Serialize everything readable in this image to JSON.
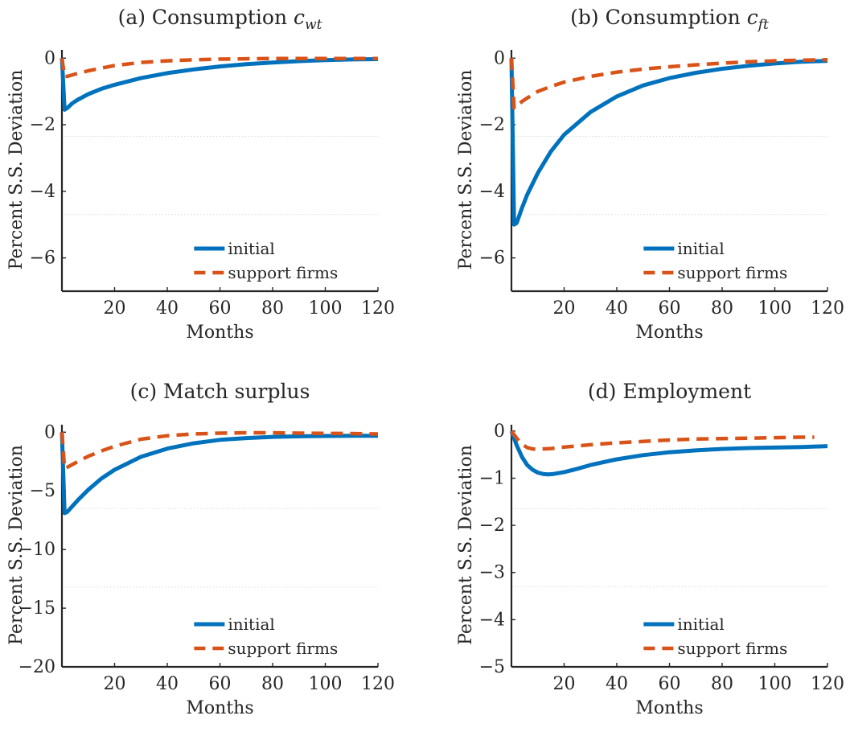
{
  "colors": {
    "initial": "#0072BD",
    "support": "#D95319"
  },
  "chart_data": [
    {
      "type": "line",
      "title_prefix": "(a) Consumption ",
      "title_var": "c",
      "title_sub": "wt",
      "xlabel": "Months",
      "ylabel": "Percent S.S. Deviation",
      "xlim": [
        0,
        120
      ],
      "ylim": [
        -7,
        0.2
      ],
      "xticks": [
        20,
        40,
        60,
        80,
        100,
        120
      ],
      "yticks": [
        0,
        -2,
        -4,
        -6
      ],
      "ygrid": [
        -2.35,
        -4.7
      ],
      "legend_position": "bottom-right",
      "series": [
        {
          "name": "initial",
          "style": "solid",
          "x": [
            0,
            1,
            2,
            4,
            6,
            10,
            15,
            20,
            30,
            40,
            50,
            60,
            70,
            80,
            90,
            100,
            110,
            120
          ],
          "values": [
            0,
            -1.55,
            -1.5,
            -1.35,
            -1.25,
            -1.08,
            -0.92,
            -0.8,
            -0.6,
            -0.45,
            -0.34,
            -0.25,
            -0.18,
            -0.13,
            -0.09,
            -0.06,
            -0.04,
            -0.03
          ]
        },
        {
          "name": "support firms",
          "style": "dashed",
          "x": [
            0,
            1,
            2,
            5,
            10,
            15,
            20,
            30,
            40,
            50,
            60,
            70,
            80,
            90,
            100,
            120
          ],
          "values": [
            0,
            -0.55,
            -0.55,
            -0.48,
            -0.38,
            -0.3,
            -0.22,
            -0.13,
            -0.08,
            -0.05,
            -0.03,
            -0.02,
            -0.01,
            -0.01,
            -0.01,
            -0.01
          ]
        }
      ]
    },
    {
      "type": "line",
      "title_prefix": "(b) Consumption ",
      "title_var": "c",
      "title_sub": "ft",
      "xlabel": "Months",
      "ylabel": "Percent S.S. Deviation",
      "xlim": [
        0,
        120
      ],
      "ylim": [
        -7,
        0.2
      ],
      "xticks": [
        20,
        40,
        60,
        80,
        100,
        120
      ],
      "yticks": [
        0,
        -2,
        -4,
        -6
      ],
      "ygrid": [
        -2.35,
        -4.7
      ],
      "legend_position": "bottom-right",
      "series": [
        {
          "name": "initial",
          "style": "solid",
          "x": [
            0,
            1,
            2,
            4,
            6,
            10,
            15,
            20,
            30,
            40,
            50,
            60,
            70,
            80,
            90,
            100,
            110,
            120
          ],
          "values": [
            0,
            -5.0,
            -4.95,
            -4.5,
            -4.1,
            -3.45,
            -2.8,
            -2.3,
            -1.62,
            -1.15,
            -0.82,
            -0.6,
            -0.44,
            -0.32,
            -0.23,
            -0.16,
            -0.11,
            -0.08
          ]
        },
        {
          "name": "support firms",
          "style": "dashed",
          "x": [
            0,
            1,
            2,
            4,
            6,
            10,
            15,
            20,
            30,
            40,
            50,
            60,
            70,
            80,
            90,
            100,
            110,
            120
          ],
          "values": [
            0,
            -1.5,
            -1.45,
            -1.3,
            -1.2,
            -1.0,
            -0.85,
            -0.72,
            -0.55,
            -0.42,
            -0.33,
            -0.26,
            -0.2,
            -0.15,
            -0.11,
            -0.08,
            -0.06,
            -0.05
          ]
        }
      ]
    },
    {
      "type": "line",
      "title_prefix": "(c) Match surplus",
      "title_var": "",
      "title_sub": "",
      "xlabel": "Months",
      "ylabel": "Percent S.S. Deviation",
      "xlim": [
        0,
        120
      ],
      "ylim": [
        -20,
        0.5
      ],
      "xticks": [
        20,
        40,
        60,
        80,
        100,
        120
      ],
      "yticks": [
        0,
        -5,
        -10,
        -15,
        -20
      ],
      "ygrid": [
        -6.5,
        -13.2
      ],
      "legend_position": "bottom-right",
      "series": [
        {
          "name": "initial",
          "style": "solid",
          "x": [
            0,
            1,
            2,
            4,
            6,
            10,
            15,
            20,
            30,
            40,
            50,
            60,
            70,
            80,
            90,
            100,
            110,
            120
          ],
          "values": [
            0,
            -6.9,
            -6.8,
            -6.3,
            -5.8,
            -4.9,
            -3.95,
            -3.2,
            -2.1,
            -1.4,
            -0.95,
            -0.65,
            -0.5,
            -0.4,
            -0.35,
            -0.32,
            -0.3,
            -0.3
          ]
        },
        {
          "name": "support firms",
          "style": "dashed",
          "x": [
            0,
            1,
            2,
            4,
            6,
            10,
            15,
            20,
            30,
            40,
            50,
            60,
            70,
            80,
            90,
            100,
            110,
            120
          ],
          "values": [
            0,
            -3.1,
            -3.0,
            -2.75,
            -2.5,
            -2.05,
            -1.6,
            -1.2,
            -0.6,
            -0.3,
            -0.15,
            -0.08,
            -0.05,
            -0.05,
            -0.08,
            -0.1,
            -0.12,
            -0.15
          ]
        }
      ]
    },
    {
      "type": "line",
      "title_prefix": "(d) Employment",
      "title_var": "",
      "title_sub": "",
      "xlabel": "Months",
      "ylabel": "Percent S.S. Deviation",
      "xlim": [
        0,
        120
      ],
      "ylim": [
        -5,
        0.1
      ],
      "xticks": [
        20,
        40,
        60,
        80,
        100,
        120
      ],
      "yticks": [
        0,
        -1,
        -2,
        -3,
        -4,
        -5
      ],
      "ygrid": [
        -1.65,
        -3.3
      ],
      "legend_position": "bottom-right",
      "series": [
        {
          "name": "initial",
          "style": "solid",
          "x": [
            0,
            2,
            4,
            6,
            8,
            10,
            12,
            14,
            16,
            20,
            25,
            30,
            40,
            50,
            60,
            70,
            80,
            90,
            100,
            110,
            120
          ],
          "values": [
            0,
            -0.3,
            -0.55,
            -0.72,
            -0.82,
            -0.88,
            -0.91,
            -0.92,
            -0.91,
            -0.87,
            -0.8,
            -0.72,
            -0.6,
            -0.51,
            -0.45,
            -0.41,
            -0.38,
            -0.36,
            -0.35,
            -0.34,
            -0.32
          ]
        },
        {
          "name": "support firms",
          "style": "dashed",
          "x": [
            0,
            2,
            4,
            6,
            8,
            10,
            12,
            15,
            20,
            30,
            40,
            50,
            60,
            70,
            80,
            90,
            100,
            110,
            115
          ],
          "values": [
            0,
            -0.15,
            -0.28,
            -0.35,
            -0.38,
            -0.39,
            -0.38,
            -0.37,
            -0.34,
            -0.29,
            -0.25,
            -0.22,
            -0.19,
            -0.17,
            -0.16,
            -0.15,
            -0.14,
            -0.13,
            -0.13
          ]
        }
      ]
    }
  ]
}
